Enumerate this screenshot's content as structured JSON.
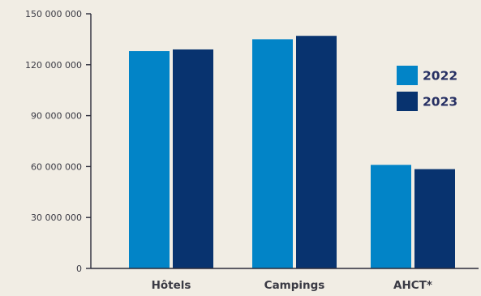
{
  "chart_data": {
    "type": "bar",
    "title": "",
    "xlabel": "",
    "ylabel": "",
    "categories": [
      "Hôtels",
      "Campings",
      "AHCT*"
    ],
    "series": [
      {
        "name": "2022",
        "color": "#0284c7",
        "values": [
          128000000,
          135000000,
          61000000
        ]
      },
      {
        "name": "2023",
        "color": "#08336f",
        "values": [
          129000000,
          137000000,
          58500000
        ]
      }
    ],
    "ylim": [
      0,
      150000000
    ],
    "yticks": [
      0,
      30000000,
      60000000,
      90000000,
      120000000,
      150000000
    ],
    "ytick_labels": [
      "0",
      "30 000 000",
      "60 000 000",
      "90 000 000",
      "120 000 000",
      "150 000 000"
    ],
    "grid": false,
    "legend_position": "right"
  }
}
